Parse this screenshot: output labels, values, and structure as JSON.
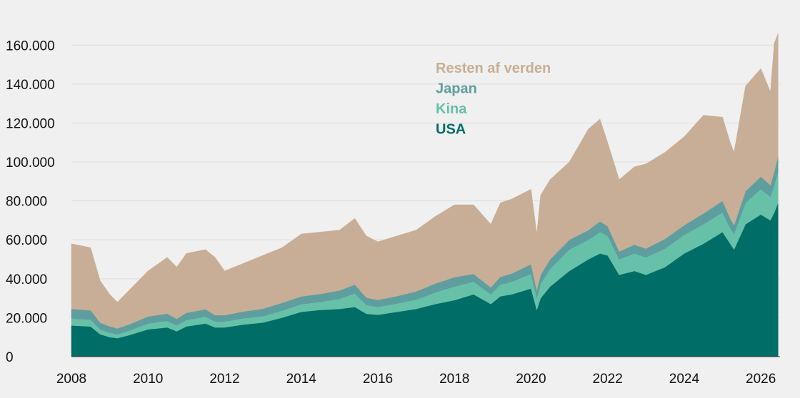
{
  "chart_data": {
    "type": "area",
    "stacked": true,
    "title": "",
    "xlabel": "",
    "ylabel": "",
    "xlim": [
      2008,
      2026.5
    ],
    "ylim": [
      0,
      170000
    ],
    "grid": true,
    "legend_position": "top-center",
    "x_ticks": [
      2008,
      2010,
      2012,
      2014,
      2016,
      2018,
      2020,
      2022,
      2024,
      2026
    ],
    "x_tick_labels": [
      "2008",
      "2010",
      "2012",
      "2014",
      "2016",
      "2018",
      "2020",
      "2022",
      "2024",
      "2026"
    ],
    "y_ticks": [
      0,
      20000,
      40000,
      60000,
      80000,
      100000,
      120000,
      140000,
      160000
    ],
    "y_tick_labels": [
      "0",
      "20.000",
      "40.000",
      "60.000",
      "80.000",
      "100.000",
      "120.000",
      "140.000",
      "160.000"
    ],
    "x": [
      2008.0,
      2008.5,
      2008.75,
      2009.0,
      2009.2,
      2009.5,
      2010.0,
      2010.5,
      2010.75,
      2011.0,
      2011.5,
      2011.75,
      2012.0,
      2012.5,
      2013.0,
      2013.5,
      2014.0,
      2014.5,
      2015.0,
      2015.4,
      2015.7,
      2016.0,
      2016.5,
      2017.0,
      2017.5,
      2018.0,
      2018.5,
      2018.95,
      2019.2,
      2019.5,
      2020.0,
      2020.15,
      2020.25,
      2020.5,
      2021.0,
      2021.5,
      2021.8,
      2022.0,
      2022.3,
      2022.7,
      2023.0,
      2023.5,
      2024.0,
      2024.5,
      2025.0,
      2025.2,
      2025.3,
      2025.6,
      2026.0,
      2026.25,
      2026.35,
      2026.45
    ],
    "series": [
      {
        "name": "USA",
        "color": "#006e66",
        "values": [
          16000,
          15500,
          11500,
          10000,
          9500,
          11000,
          14000,
          15000,
          13000,
          15500,
          17000,
          15000,
          15000,
          16500,
          17500,
          20000,
          23000,
          24000,
          24500,
          25500,
          22000,
          21500,
          23000,
          24500,
          27000,
          29000,
          32000,
          27000,
          31000,
          32000,
          35000,
          24000,
          30000,
          36000,
          44000,
          50000,
          53000,
          52000,
          42000,
          44000,
          42000,
          46000,
          53000,
          58000,
          64000,
          58000,
          55000,
          68000,
          73000,
          70000,
          74000,
          79000
        ]
      },
      {
        "name": "Kina",
        "color": "#67c1a8",
        "values": [
          3500,
          3500,
          2500,
          2200,
          2000,
          2300,
          3000,
          3300,
          3000,
          3300,
          3500,
          3000,
          3000,
          3200,
          3300,
          3600,
          3900,
          4100,
          5200,
          7000,
          4500,
          4000,
          4300,
          4800,
          6000,
          7000,
          6500,
          5000,
          6000,
          6500,
          7500,
          6000,
          7500,
          9000,
          11000,
          10000,
          11000,
          10000,
          8000,
          9000,
          9000,
          9500,
          9500,
          10000,
          10000,
          8000,
          8000,
          11000,
          13000,
          12000,
          14000,
          16000
        ]
      },
      {
        "name": "Japan",
        "color": "#5f9e9e",
        "values": [
          5000,
          4800,
          3500,
          3300,
          3000,
          3200,
          3600,
          3800,
          3400,
          3700,
          3800,
          3300,
          3300,
          3500,
          3800,
          4000,
          4000,
          4100,
          4300,
          4500,
          3800,
          3600,
          3800,
          4200,
          4500,
          4800,
          4000,
          3500,
          4000,
          4200,
          5000,
          4000,
          4500,
          5000,
          5000,
          5000,
          5500,
          5000,
          4000,
          4500,
          4500,
          5000,
          5000,
          5500,
          6000,
          5000,
          4500,
          6000,
          6500,
          6000,
          7000,
          8000
        ]
      },
      {
        "name": "Resten af verden",
        "color": "#c8ae96",
        "values": [
          33500,
          32200,
          21500,
          16500,
          13500,
          17500,
          23400,
          28900,
          26600,
          30500,
          30700,
          29700,
          22700,
          24800,
          27400,
          28400,
          32100,
          31800,
          31000,
          34000,
          31700,
          29900,
          30900,
          31500,
          34500,
          37200,
          35500,
          32500,
          38000,
          38300,
          38500,
          29000,
          41000,
          41000,
          40000,
          52000,
          52500,
          43000,
          37000,
          40000,
          43500,
          44500,
          45500,
          50500,
          43000,
          39000,
          37500,
          54000,
          55500,
          48000,
          66000,
          63000
        ]
      }
    ]
  },
  "legend": {
    "items": [
      {
        "label": "Resten af verden",
        "color": "#c8ae96"
      },
      {
        "label": "Japan",
        "color": "#5f9e9e"
      },
      {
        "label": "Kina",
        "color": "#67c1a8"
      },
      {
        "label": "USA",
        "color": "#006e66"
      }
    ]
  }
}
